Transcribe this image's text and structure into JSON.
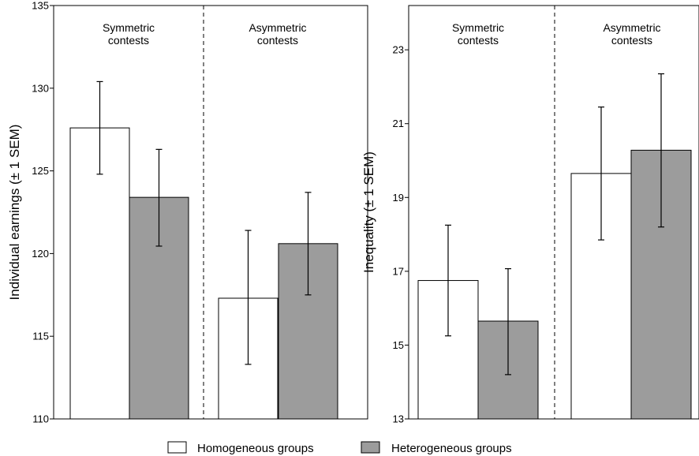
{
  "chart_data": [
    {
      "type": "bar",
      "ylabel": "Individual earnings (± 1 SEM)",
      "ylim": [
        110,
        135
      ],
      "yticks": [
        110,
        115,
        120,
        125,
        130,
        135
      ],
      "groups": [
        {
          "label_lines": [
            "Symmetric",
            "contests"
          ]
        },
        {
          "label_lines": [
            "Asymmetric",
            "contests"
          ]
        }
      ],
      "series": [
        {
          "name": "Homogeneous groups",
          "color": "#ffffff",
          "values": [
            127.6,
            117.3
          ],
          "err_low": [
            124.8,
            113.3
          ],
          "err_high": [
            130.4,
            121.4
          ]
        },
        {
          "name": "Heterogeneous groups",
          "color": "#9c9c9c",
          "values": [
            123.4,
            120.6
          ],
          "err_low": [
            120.45,
            117.5
          ],
          "err_high": [
            126.3,
            123.7
          ]
        }
      ],
      "grid": false
    },
    {
      "type": "bar",
      "ylabel": "Inequality (± 1 SEM)",
      "ylim": [
        13,
        24.2
      ],
      "yticks": [
        13,
        15,
        17,
        19,
        21,
        23
      ],
      "groups": [
        {
          "label_lines": [
            "Symmetric",
            "contests"
          ]
        },
        {
          "label_lines": [
            "Asymmetric",
            "contests"
          ]
        }
      ],
      "series": [
        {
          "name": "Homogeneous groups",
          "color": "#ffffff",
          "values": [
            16.75,
            19.65
          ],
          "err_low": [
            15.25,
            17.85
          ],
          "err_high": [
            18.25,
            21.45
          ]
        },
        {
          "name": "Heterogeneous groups",
          "color": "#9c9c9c",
          "values": [
            15.65,
            20.28
          ],
          "err_low": [
            14.2,
            18.2
          ],
          "err_high": [
            17.07,
            22.35
          ]
        }
      ],
      "grid": false
    }
  ],
  "legend": {
    "placement": "bottom",
    "items": [
      {
        "label": "Homogeneous groups",
        "color": "#ffffff"
      },
      {
        "label": "Heterogeneous groups",
        "color": "#9c9c9c"
      }
    ]
  }
}
